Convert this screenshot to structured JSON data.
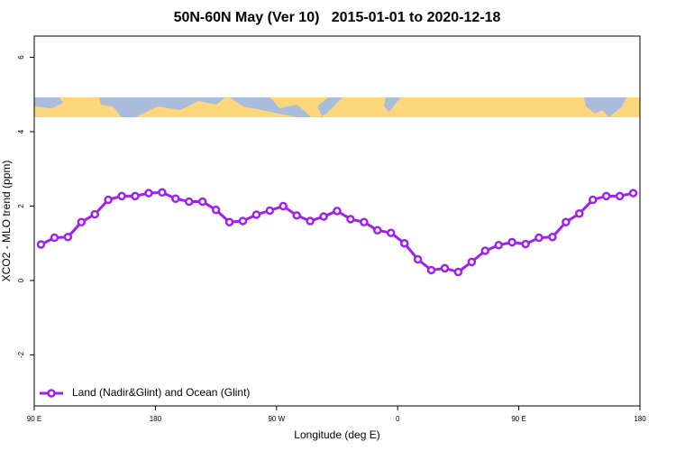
{
  "chart_data": {
    "type": "line",
    "title": "50N-60N May (Ver 10)   2015-01-01 to 2020-12-18",
    "x_label": "Longitude (deg E)",
    "y_label": "XCO2 - MLO trend (ppm)",
    "x": [
      95,
      105,
      115,
      125,
      135,
      145,
      155,
      165,
      175,
      185,
      195,
      205,
      215,
      225,
      235,
      245,
      255,
      265,
      275,
      285,
      295,
      305,
      315,
      325,
      335,
      345,
      355,
      365,
      375,
      385,
      395,
      405,
      415,
      425,
      435,
      445,
      455,
      465,
      475,
      485,
      495,
      505,
      515,
      525,
      535
    ],
    "series": [
      {
        "name": "Land (Nadir&Glint) and Ocean (Glint)",
        "color": "#a020f0",
        "values": [
          0.97,
          1.15,
          1.17,
          1.57,
          1.78,
          2.17,
          2.27,
          2.27,
          2.35,
          2.37,
          2.2,
          2.12,
          2.12,
          1.9,
          1.57,
          1.6,
          1.77,
          1.88,
          2.0,
          1.75,
          1.6,
          1.72,
          1.87,
          1.65,
          1.57,
          1.35,
          1.28,
          1.0,
          0.57,
          0.28,
          0.33,
          0.23,
          0.5,
          0.8,
          0.95,
          1.03,
          0.98,
          1.15,
          1.17,
          1.57,
          1.8,
          2.17,
          2.27,
          2.27,
          2.35
        ]
      }
    ],
    "xlim": [
      90,
      540
    ],
    "xticks": [
      {
        "value": 90,
        "label": "90 E"
      },
      180,
      {
        "value": 270,
        "label": "90 W"
      },
      {
        "value": 360,
        "label": "0"
      },
      {
        "value": 450,
        "label": "90 E"
      },
      {
        "value": 540,
        "label": "180"
      }
    ],
    "ylim": [
      -3.37,
      6.57
    ],
    "yticks": [
      -2,
      0,
      2,
      4,
      6
    ],
    "legend": "bottom-left"
  }
}
